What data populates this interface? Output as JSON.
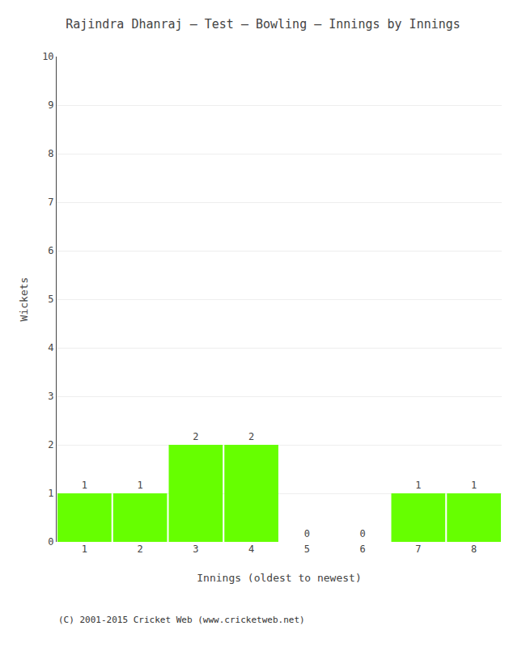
{
  "chart_data": {
    "type": "bar",
    "title": "Rajindra Dhanraj – Test – Bowling – Innings by Innings",
    "xlabel": "Innings (oldest to newest)",
    "ylabel": "Wickets",
    "categories": [
      "1",
      "2",
      "3",
      "4",
      "5",
      "6",
      "7",
      "8"
    ],
    "values": [
      1,
      1,
      2,
      2,
      0,
      0,
      1,
      1
    ],
    "color": "#66ff00",
    "ylim": [
      0,
      10
    ],
    "yticks": [
      0,
      1,
      2,
      3,
      4,
      5,
      6,
      7,
      8,
      9,
      10
    ],
    "grid": true,
    "data_labels": true,
    "annotations": [
      "(C) 2001-2015 Cricket Web (www.cricketweb.net)"
    ]
  }
}
